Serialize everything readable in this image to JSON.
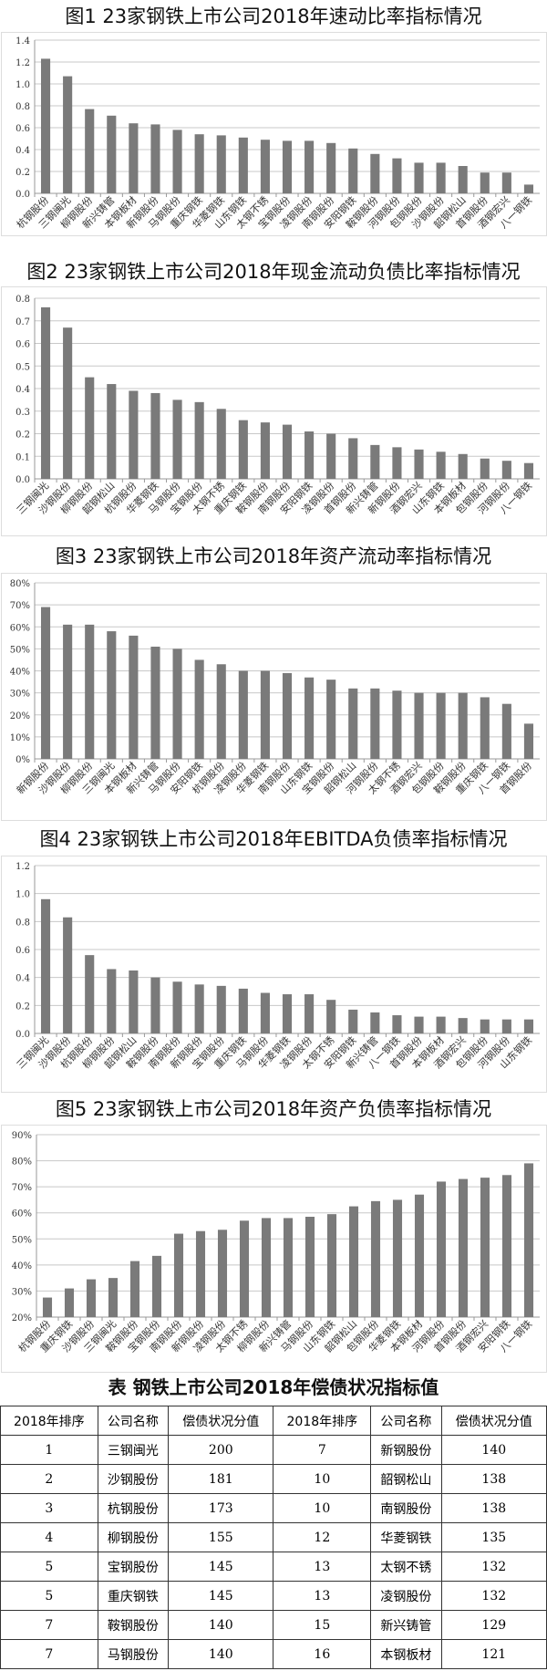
{
  "chart_data": [
    {
      "type": "bar",
      "title": "图1  23家钢铁上市公司2018年速动比率指标情况",
      "ylim": [
        0,
        1.4
      ],
      "yticks": [
        "0.0",
        "0.2",
        "0.4",
        "0.6",
        "0.8",
        "1.0",
        "1.2",
        "1.4"
      ],
      "grid": true,
      "categories": [
        "杭钢股份",
        "三钢闽光",
        "柳钢股份",
        "新兴铸管",
        "本钢板材",
        "新钢股份",
        "马钢股份",
        "重庆钢铁",
        "华菱钢铁",
        "山东钢铁",
        "太钢不锈",
        "宝钢股份",
        "凌钢股份",
        "南钢股份",
        "安阳钢铁",
        "鞍钢股份",
        "河钢股份",
        "包钢股份",
        "沙钢股份",
        "韶钢松山",
        "首钢股份",
        "酒钢宏兴",
        "八一钢铁"
      ],
      "values": [
        1.23,
        1.07,
        0.77,
        0.71,
        0.64,
        0.63,
        0.58,
        0.54,
        0.53,
        0.51,
        0.49,
        0.48,
        0.48,
        0.46,
        0.41,
        0.36,
        0.32,
        0.28,
        0.28,
        0.25,
        0.19,
        0.19,
        0.08
      ]
    },
    {
      "type": "bar",
      "title": "图2  23家钢铁上市公司2018年现金流动负债比率指标情况",
      "ylim": [
        0,
        0.8
      ],
      "yticks": [
        "0.0",
        "0.1",
        "0.2",
        "0.3",
        "0.4",
        "0.5",
        "0.6",
        "0.7",
        "0.8"
      ],
      "grid": true,
      "categories": [
        "三钢闽光",
        "沙钢股份",
        "柳钢股份",
        "韶钢松山",
        "杭钢股份",
        "华菱钢铁",
        "马钢股份",
        "宝钢股份",
        "太钢不锈",
        "重庆钢铁",
        "鞍钢股份",
        "南钢股份",
        "安阳钢铁",
        "凌钢股份",
        "首钢股份",
        "新兴铸管",
        "新钢股份",
        "酒钢宏兴",
        "山东钢铁",
        "本钢板材",
        "包钢股份",
        "河钢股份",
        "八一钢铁"
      ],
      "values": [
        0.76,
        0.67,
        0.45,
        0.42,
        0.39,
        0.38,
        0.35,
        0.34,
        0.31,
        0.26,
        0.25,
        0.24,
        0.21,
        0.2,
        0.18,
        0.15,
        0.14,
        0.13,
        0.12,
        0.11,
        0.09,
        0.08,
        0.07
      ]
    },
    {
      "type": "bar",
      "title": "图3  23家钢铁上市公司2018年资产流动率指标情况",
      "ylim": [
        0,
        80
      ],
      "yticks": [
        "0%",
        "10%",
        "20%",
        "30%",
        "40%",
        "50%",
        "60%",
        "70%",
        "80%"
      ],
      "grid": true,
      "categories": [
        "新钢股份",
        "沙钢股份",
        "柳钢股份",
        "三钢闽光",
        "本钢板材",
        "新兴铸管",
        "马钢股份",
        "安阳钢铁",
        "杭钢股份",
        "凌钢股份",
        "华菱钢铁",
        "南钢股份",
        "山东钢铁",
        "宝钢股份",
        "韶钢松山",
        "河钢股份",
        "太钢不锈",
        "酒钢宏兴",
        "包钢股份",
        "鞍钢股份",
        "重庆钢铁",
        "八一钢铁",
        "首钢股份"
      ],
      "values": [
        69,
        61,
        61,
        58,
        56,
        51,
        50,
        45,
        43,
        40,
        40,
        39,
        37,
        36,
        32,
        32,
        31,
        30,
        30,
        30,
        28,
        25,
        16
      ]
    },
    {
      "type": "bar",
      "title": "图4 23家钢铁上市公司2018年EBITDA负债率指标情况",
      "ylim": [
        0,
        1.2
      ],
      "yticks": [
        "0.0",
        "0.2",
        "0.4",
        "0.6",
        "0.8",
        "1.0",
        "1.2"
      ],
      "grid": true,
      "categories": [
        "三钢闽光",
        "沙钢股份",
        "杭钢股份",
        "柳钢股份",
        "韶钢松山",
        "鞍钢股份",
        "南钢股份",
        "新钢股份",
        "宝钢股份",
        "重庆钢铁",
        "马钢股份",
        "华菱钢铁",
        "凌钢股份",
        "太钢不锈",
        "安阳钢铁",
        "新兴铸管",
        "八一钢铁",
        "首钢股份",
        "本钢板材",
        "酒钢宏兴",
        "包钢股份",
        "河钢股份",
        "山东钢铁"
      ],
      "values": [
        0.96,
        0.83,
        0.56,
        0.46,
        0.45,
        0.4,
        0.37,
        0.35,
        0.34,
        0.32,
        0.29,
        0.28,
        0.28,
        0.24,
        0.17,
        0.15,
        0.13,
        0.12,
        0.12,
        0.11,
        0.1,
        0.1,
        0.1
      ]
    },
    {
      "type": "bar",
      "title": "图5 23家钢铁上市公司2018年资产负债率指标情况",
      "ylim": [
        20,
        90
      ],
      "yticks": [
        "20%",
        "30%",
        "40%",
        "50%",
        "60%",
        "70%",
        "80%",
        "90%"
      ],
      "grid": true,
      "categories": [
        "杭钢股份",
        "重庆钢铁",
        "沙钢股份",
        "三钢闽光",
        "鞍钢股份",
        "宝钢股份",
        "南钢股份",
        "新钢股份",
        "凌钢股份",
        "太钢不锈",
        "柳钢股份",
        "新兴铸管",
        "马钢股份",
        "山东钢铁",
        "韶钢松山",
        "包钢股份",
        "华菱钢铁",
        "本钢板材",
        "河钢股份",
        "首钢股份",
        "酒钢宏兴",
        "安阳钢铁",
        "八一钢铁"
      ],
      "values": [
        27.5,
        31,
        34.5,
        35,
        41.5,
        43.5,
        52,
        53,
        53.5,
        57,
        58,
        58,
        58.5,
        59.5,
        62.5,
        64.5,
        65,
        67,
        72,
        73,
        73.5,
        74.5,
        79
      ]
    }
  ],
  "colors": {
    "bar": "#7a7a7a",
    "grid": "#c8c8c8"
  },
  "table": {
    "title": "表  钢铁上市公司2018年偿债状况指标值",
    "headers": [
      "2018年排序",
      "公司名称",
      "偿债状况分值",
      "2018年排序",
      "公司名称",
      "偿债状况分值"
    ],
    "rows": [
      [
        "1",
        "三钢闽光",
        "200",
        "7",
        "新钢股份",
        "140"
      ],
      [
        "2",
        "沙钢股份",
        "181",
        "10",
        "韶钢松山",
        "138"
      ],
      [
        "3",
        "杭钢股份",
        "173",
        "10",
        "南钢股份",
        "138"
      ],
      [
        "4",
        "柳钢股份",
        "155",
        "12",
        "华菱钢铁",
        "135"
      ],
      [
        "5",
        "宝钢股份",
        "145",
        "13",
        "太钢不锈",
        "132"
      ],
      [
        "5",
        "重庆钢铁",
        "145",
        "13",
        "凌钢股份",
        "132"
      ],
      [
        "7",
        "鞍钢股份",
        "140",
        "15",
        "新兴铸管",
        "129"
      ],
      [
        "7",
        "马钢股份",
        "140",
        "16",
        "本钢板材",
        "121"
      ]
    ]
  }
}
